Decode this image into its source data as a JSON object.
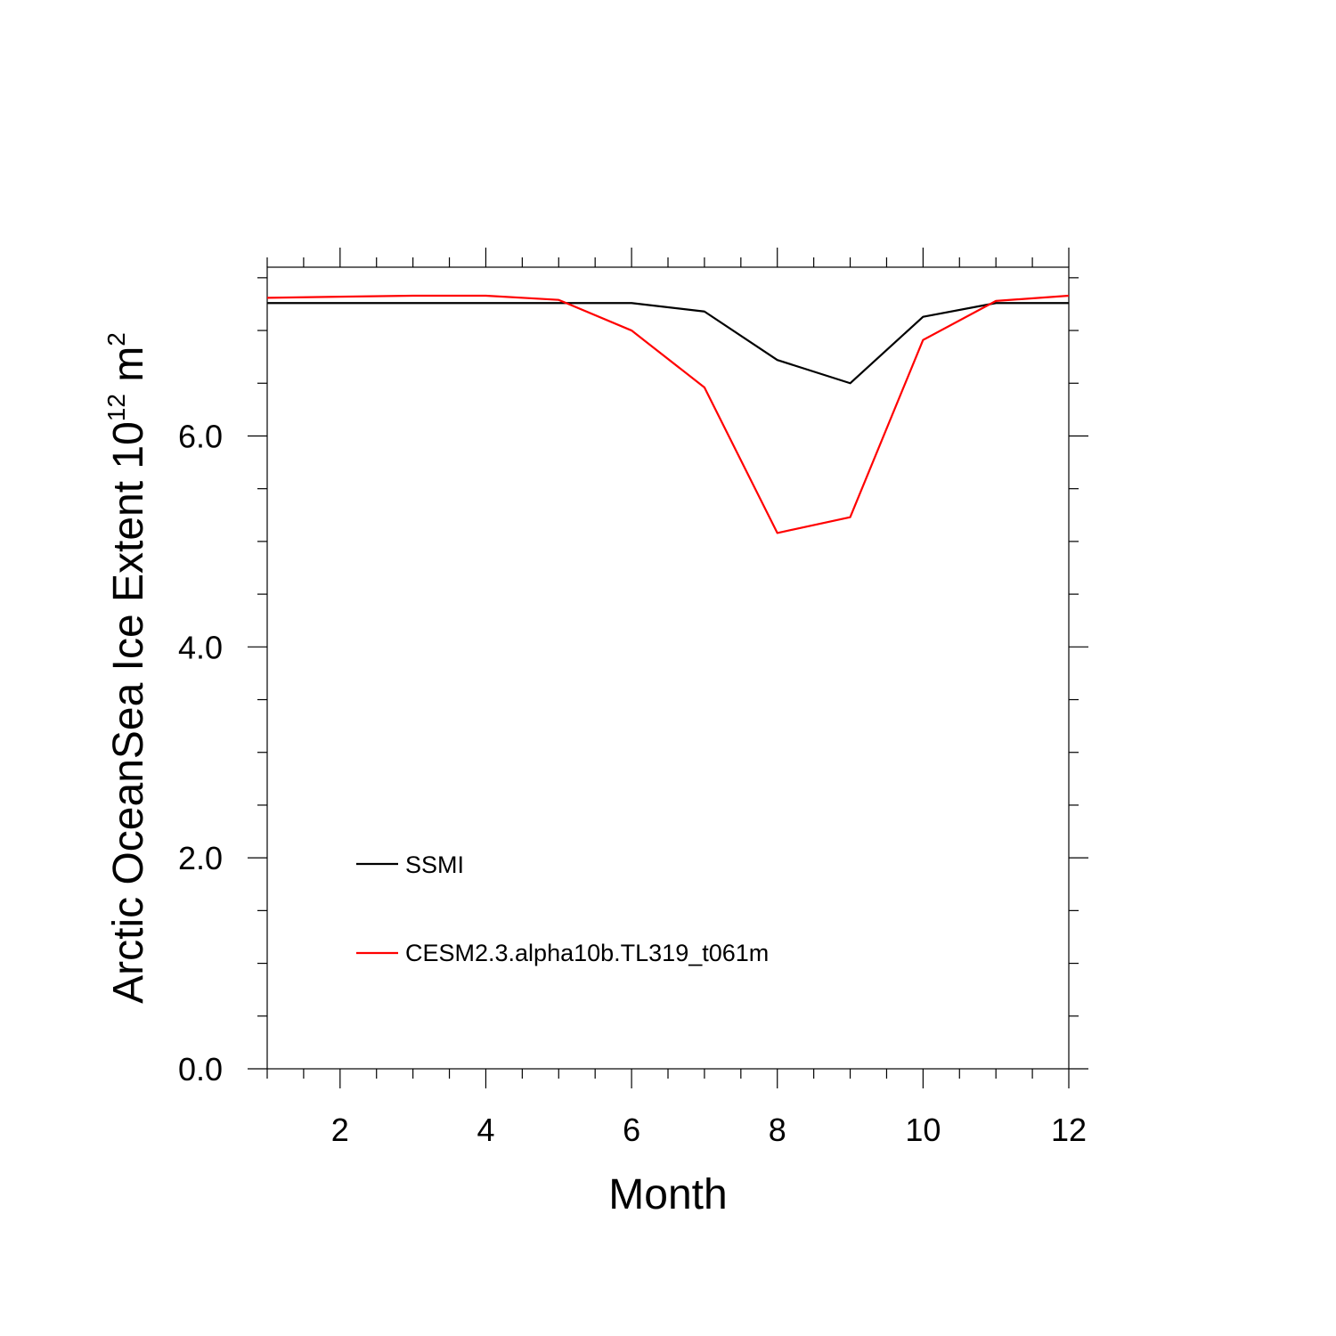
{
  "chart_data": {
    "type": "line",
    "xlabel": "Month",
    "ylabel_main": "Arctic OceanSea Ice Extent 10",
    "ylabel_exp": "12",
    "ylabel_unit": " m",
    "ylabel_unit_exp": "2",
    "xlim": [
      1,
      12
    ],
    "ylim": [
      0,
      7.6
    ],
    "x_ticks": [
      2,
      4,
      6,
      8,
      10,
      12
    ],
    "x_tick_labels": [
      "2",
      "4",
      "6",
      "8",
      "10",
      "12"
    ],
    "y_ticks": [
      0,
      2,
      4,
      6
    ],
    "y_tick_labels": [
      "0.0",
      "2.0",
      "4.0",
      "6.0"
    ],
    "grid": false,
    "legend_position": "lower-left",
    "x": [
      1,
      2,
      3,
      4,
      5,
      6,
      7,
      8,
      9,
      10,
      11,
      12
    ],
    "series": [
      {
        "name": "SSMI",
        "color": "#000000",
        "values": [
          7.26,
          7.26,
          7.26,
          7.26,
          7.26,
          7.26,
          7.18,
          6.72,
          6.5,
          7.13,
          7.26,
          7.26
        ]
      },
      {
        "name": "CESM2.3.alpha10b.TL319_t061m",
        "color": "#ff0000",
        "values": [
          7.31,
          7.32,
          7.33,
          7.33,
          7.29,
          7.0,
          6.46,
          5.08,
          5.23,
          6.91,
          7.28,
          7.33
        ]
      }
    ]
  }
}
